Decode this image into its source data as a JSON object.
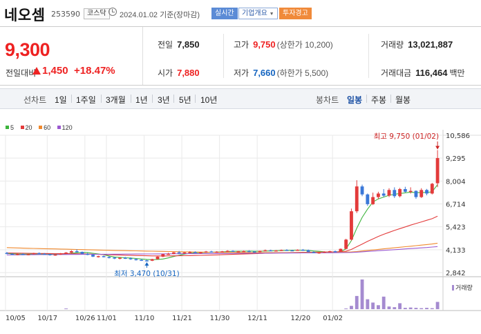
{
  "header": {
    "name": "네오셈",
    "code": "253590",
    "market": "코스닥",
    "date": "2024.01.02 기준(장마감)",
    "realtime_label": "실시간",
    "corp_label": "기업개요",
    "warning_label": "투자경고"
  },
  "price": {
    "current": "9,300",
    "change_label": "전일대비",
    "change": "1,450",
    "change_pct": "+18.47%",
    "direction": "up"
  },
  "stats": {
    "prev_label": "전일",
    "prev": "7,850",
    "high_label": "고가",
    "high": "9,750",
    "high_limit": "(상한가 10,200)",
    "volume_label": "거래량",
    "volume": "13,021,887",
    "open_label": "시가",
    "open": "7,880",
    "low_label": "저가",
    "low": "7,660",
    "low_limit": "(하한가 5,500)",
    "amount_label": "거래대금",
    "amount": "116,464",
    "amount_unit": "백만"
  },
  "tabs": {
    "line_label": "선차트",
    "periods": [
      "1일",
      "1주일",
      "3개월",
      "1년",
      "3년",
      "5년",
      "10년"
    ],
    "candle_label": "봉차트",
    "candle_periods": [
      "일봉",
      "주봉",
      "월봉"
    ],
    "active_candle": "일봉"
  },
  "chart_data": {
    "type": "candlestick",
    "legend": [
      {
        "name": "5",
        "color": "#3cb43c"
      },
      {
        "name": "20",
        "color": "#e33b3b"
      },
      {
        "name": "60",
        "color": "#f0882c"
      },
      {
        "name": "120",
        "color": "#9b59d0"
      }
    ],
    "y_ticks": [
      10586,
      9295,
      8004,
      6714,
      5423,
      4133,
      2842
    ],
    "ylim": [
      2842,
      10586
    ],
    "x_labels": [
      "10/05",
      "10/17",
      "10/26",
      "11/01",
      "11/10",
      "11/21",
      "11/30",
      "12/11",
      "12/20",
      "01/02"
    ],
    "annotation_high": "최고 9,750 (01/02)",
    "annotation_low": "최저 3,470 (10/31)",
    "volume_legend": "거래량",
    "colors": {
      "up": "#e33b3b",
      "down": "#3a78d8",
      "grid": "#e9e9e9"
    },
    "candles": [
      [
        3950,
        4010,
        3880,
        3900
      ],
      [
        3900,
        3940,
        3850,
        3870
      ],
      [
        3870,
        3920,
        3820,
        3890
      ],
      [
        3890,
        3930,
        3850,
        3860
      ],
      [
        3860,
        3900,
        3820,
        3880
      ],
      [
        3880,
        3960,
        3860,
        3940
      ],
      [
        3940,
        3980,
        3890,
        3900
      ],
      [
        3900,
        3940,
        3860,
        3880
      ],
      [
        3880,
        3900,
        3800,
        3840
      ],
      [
        3840,
        3880,
        3790,
        3860
      ],
      [
        3860,
        3950,
        3840,
        3930
      ],
      [
        3930,
        4000,
        3900,
        3970
      ],
      [
        3970,
        4100,
        3940,
        4050
      ],
      [
        4050,
        4150,
        3980,
        4010
      ],
      [
        4010,
        4030,
        3880,
        3900
      ],
      [
        3900,
        3950,
        3820,
        3850
      ],
      [
        3850,
        3880,
        3720,
        3740
      ],
      [
        3740,
        3790,
        3690,
        3770
      ],
      [
        3770,
        3800,
        3700,
        3720
      ],
      [
        3720,
        3760,
        3640,
        3690
      ],
      [
        3690,
        3730,
        3600,
        3640
      ],
      [
        3640,
        3700,
        3590,
        3680
      ],
      [
        3680,
        3720,
        3610,
        3650
      ],
      [
        3650,
        3700,
        3560,
        3600
      ],
      [
        3600,
        3650,
        3520,
        3560
      ],
      [
        3560,
        3620,
        3500,
        3530
      ],
      [
        3530,
        3560,
        3470,
        3510
      ],
      [
        3510,
        3620,
        3490,
        3600
      ],
      [
        3600,
        3760,
        3580,
        3740
      ],
      [
        3740,
        3900,
        3710,
        3880
      ],
      [
        3880,
        3960,
        3840,
        3900
      ],
      [
        3900,
        4000,
        3880,
        3980
      ],
      [
        3980,
        4060,
        3920,
        3940
      ],
      [
        3940,
        4000,
        3900,
        3980
      ],
      [
        3980,
        4050,
        3950,
        4000
      ],
      [
        4000,
        4040,
        3940,
        3960
      ],
      [
        3960,
        4000,
        3900,
        3990
      ],
      [
        3990,
        4060,
        3950,
        4030
      ],
      [
        4030,
        4070,
        3980,
        4000
      ],
      [
        4000,
        4050,
        3960,
        4020
      ],
      [
        4020,
        4060,
        3980,
        4040
      ],
      [
        4040,
        4100,
        4010,
        4070
      ],
      [
        4070,
        4100,
        4010,
        4030
      ],
      [
        4030,
        4070,
        4000,
        4050
      ],
      [
        4050,
        4090,
        4020,
        4060
      ],
      [
        4060,
        4100,
        4000,
        4030
      ],
      [
        4030,
        4060,
        3990,
        4000
      ],
      [
        4000,
        4080,
        3990,
        4070
      ],
      [
        4070,
        4140,
        4040,
        4100
      ],
      [
        4100,
        4130,
        4050,
        4080
      ],
      [
        4080,
        4110,
        4040,
        4090
      ],
      [
        4090,
        4140,
        4060,
        4120
      ],
      [
        4120,
        4160,
        4080,
        4100
      ],
      [
        4100,
        4130,
        4060,
        4090
      ],
      [
        4090,
        4150,
        4070,
        4130
      ],
      [
        4130,
        4170,
        4090,
        4110
      ],
      [
        4110,
        4140,
        3990,
        4000
      ],
      [
        4000,
        4040,
        3940,
        3960
      ],
      [
        3960,
        4000,
        3900,
        3980
      ],
      [
        3980,
        4040,
        3950,
        4020
      ],
      [
        4020,
        4070,
        3990,
        4050
      ],
      [
        4050,
        4080,
        4000,
        4030
      ],
      [
        4030,
        4200,
        4010,
        4180
      ],
      [
        4180,
        4750,
        4150,
        4700
      ],
      [
        4700,
        6450,
        4650,
        6300
      ],
      [
        6300,
        8050,
        6200,
        7700
      ],
      [
        7700,
        7800,
        7150,
        7250
      ],
      [
        7250,
        7300,
        6600,
        6700
      ],
      [
        6700,
        7350,
        6650,
        7100
      ],
      [
        7100,
        7400,
        6980,
        7300
      ],
      [
        7300,
        7550,
        7100,
        7180
      ],
      [
        7180,
        7600,
        7100,
        7500
      ],
      [
        7500,
        7650,
        7050,
        7150
      ],
      [
        7150,
        7620,
        7080,
        7550
      ],
      [
        7550,
        7680,
        7350,
        7400
      ],
      [
        7400,
        7650,
        7300,
        7450
      ],
      [
        7450,
        7480,
        7000,
        7100
      ],
      [
        7100,
        7600,
        7050,
        7500
      ],
      [
        7500,
        7560,
        7200,
        7300
      ],
      [
        7300,
        7900,
        7250,
        7850
      ],
      [
        7880,
        9750,
        7660,
        9300
      ]
    ],
    "ma5": [
      3920,
      3905,
      3890,
      3880,
      3885,
      3890,
      3895,
      3890,
      3880,
      3870,
      3880,
      3900,
      3935,
      3960,
      3980,
      3975,
      3930,
      3890,
      3850,
      3780,
      3720,
      3700,
      3680,
      3665,
      3640,
      3610,
      3585,
      3570,
      3580,
      3610,
      3670,
      3750,
      3820,
      3880,
      3930,
      3960,
      3970,
      3980,
      3990,
      4000,
      4010,
      4025,
      4040,
      4045,
      4050,
      4055,
      4050,
      4045,
      4055,
      4065,
      4075,
      4085,
      4095,
      4100,
      4105,
      4105,
      4090,
      4060,
      4040,
      4015,
      4000,
      4000,
      4030,
      4180,
      4650,
      5350,
      5950,
      6420,
      6820,
      7000,
      7100,
      7200,
      7260,
      7300,
      7340,
      7380,
      7350,
      7360,
      7360,
      7400,
      7800
    ],
    "ma20": [
      3950,
      3945,
      3940,
      3935,
      3930,
      3925,
      3920,
      3918,
      3915,
      3912,
      3910,
      3908,
      3905,
      3900,
      3895,
      3890,
      3880,
      3870,
      3860,
      3850,
      3840,
      3830,
      3820,
      3812,
      3805,
      3798,
      3790,
      3785,
      3782,
      3780,
      3782,
      3786,
      3790,
      3795,
      3800,
      3808,
      3815,
      3822,
      3830,
      3840,
      3850,
      3860,
      3870,
      3880,
      3890,
      3900,
      3910,
      3920,
      3930,
      3940,
      3950,
      3958,
      3966,
      3974,
      3980,
      3986,
      3990,
      3994,
      3998,
      4002,
      4006,
      4010,
      4020,
      4050,
      4150,
      4300,
      4450,
      4600,
      4740,
      4880,
      5000,
      5110,
      5220,
      5320,
      5420,
      5520,
      5610,
      5700,
      5790,
      5880,
      6020
    ],
    "ma60": [
      4250,
      4240,
      4230,
      4220,
      4212,
      4205,
      4198,
      4190,
      4182,
      4175,
      4168,
      4160,
      4152,
      4145,
      4138,
      4130,
      4122,
      4115,
      4108,
      4100,
      4092,
      4085,
      4078,
      4072,
      4066,
      4060,
      4054,
      4048,
      4042,
      4036,
      4030,
      4024,
      4018,
      4012,
      4006,
      4000,
      3996,
      3992,
      3988,
      3985,
      3982,
      3980,
      3978,
      3976,
      3974,
      3972,
      3970,
      3969,
      3968,
      3968,
      3968,
      3969,
      3970,
      3972,
      3974,
      3976,
      3978,
      3980,
      3982,
      3985,
      3988,
      3991,
      3995,
      4000,
      4010,
      4030,
      4060,
      4090,
      4120,
      4150,
      4180,
      4210,
      4240,
      4270,
      4300,
      4330,
      4360,
      4390,
      4420,
      4455,
      4500
    ],
    "ma120": [
      3840,
      3842,
      3844,
      3846,
      3848,
      3850,
      3852,
      3854,
      3856,
      3858,
      3860,
      3862,
      3864,
      3866,
      3868,
      3870,
      3872,
      3874,
      3876,
      3878,
      3880,
      3882,
      3884,
      3886,
      3888,
      3890,
      3892,
      3894,
      3896,
      3898,
      3900,
      3902,
      3904,
      3906,
      3908,
      3910,
      3912,
      3914,
      3916,
      3918,
      3920,
      3922,
      3924,
      3926,
      3928,
      3930,
      3932,
      3934,
      3936,
      3938,
      3940,
      3942,
      3944,
      3946,
      3948,
      3950,
      3952,
      3954,
      3956,
      3958,
      3960,
      3962,
      3965,
      3970,
      3980,
      3995,
      4015,
      4035,
      4055,
      4075,
      4095,
      4115,
      4135,
      4155,
      4175,
      4195,
      4215,
      4235,
      4255,
      4280,
      4310
    ],
    "volume": [
      1,
      1,
      1,
      1,
      1,
      1,
      1,
      1,
      1,
      1,
      1,
      2,
      1,
      1,
      1,
      1,
      1,
      1,
      1,
      1,
      1,
      1,
      1,
      1,
      1,
      1,
      1,
      1,
      1,
      1,
      1,
      1,
      1,
      1,
      1,
      1,
      1,
      1,
      1,
      1,
      1,
      1,
      1,
      1,
      1,
      1,
      1,
      1,
      1,
      1,
      1,
      1,
      1,
      1,
      1,
      1,
      1,
      1,
      1,
      1,
      1,
      1,
      1,
      2,
      10,
      40,
      90,
      30,
      20,
      12,
      38,
      8,
      6,
      18,
      4,
      5,
      4,
      3,
      4,
      3,
      22
    ]
  }
}
